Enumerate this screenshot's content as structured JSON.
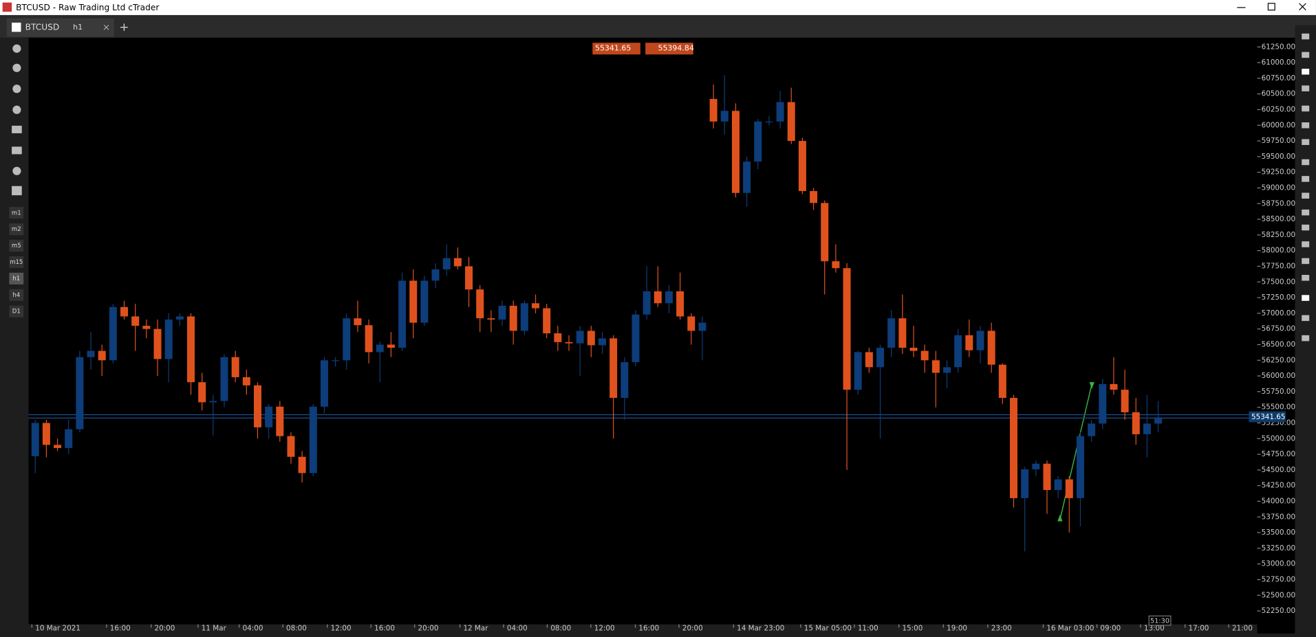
{
  "window": {
    "title": "BTCUSD - Raw Trading Ltd cTrader"
  },
  "tab": {
    "symbol": "BTCUSD",
    "timeframe": "h1"
  },
  "toolbar": {
    "timeframes": [
      "m1",
      "m2",
      "m5",
      "m15",
      "h1",
      "h4",
      "D1"
    ]
  },
  "quote": {
    "sell": 55341.65,
    "buy": 55394.84
  },
  "chart_data": {
    "type": "candlestick",
    "candles": [
      [
        54720,
        55300,
        54450,
        55250
      ],
      [
        55250,
        55300,
        54700,
        54900
      ],
      [
        54900,
        55000,
        54800,
        54850
      ],
      [
        54850,
        55300,
        54750,
        55150
      ],
      [
        55150,
        56400,
        55100,
        56300
      ],
      [
        56300,
        56700,
        56100,
        56400
      ],
      [
        56400,
        56500,
        56000,
        56250
      ],
      [
        56250,
        57150,
        56200,
        57100
      ],
      [
        57100,
        57200,
        56900,
        56950
      ],
      [
        56950,
        57150,
        56400,
        56800
      ],
      [
        56800,
        56900,
        56600,
        56750
      ],
      [
        56750,
        56900,
        56000,
        56270
      ],
      [
        56270,
        57000,
        55900,
        56900
      ],
      [
        56900,
        57000,
        56800,
        56950
      ],
      [
        56950,
        57000,
        55700,
        55900
      ],
      [
        55900,
        56050,
        55450,
        55580
      ],
      [
        55580,
        55700,
        55050,
        55600
      ],
      [
        55600,
        56350,
        55500,
        56300
      ],
      [
        56300,
        56400,
        55900,
        55980
      ],
      [
        55980,
        56100,
        55700,
        55850
      ],
      [
        55850,
        55900,
        55000,
        55180
      ],
      [
        55180,
        55550,
        55000,
        55510
      ],
      [
        55510,
        55600,
        54950,
        55040
      ],
      [
        55040,
        55100,
        54600,
        54710
      ],
      [
        54710,
        54800,
        54300,
        54450
      ],
      [
        54450,
        55550,
        54400,
        55510
      ],
      [
        55510,
        56300,
        55400,
        56250
      ],
      [
        56250,
        56300,
        56150,
        56250
      ],
      [
        56250,
        57000,
        56100,
        56920
      ],
      [
        56920,
        57200,
        56700,
        56810
      ],
      [
        56810,
        56900,
        56200,
        56380
      ],
      [
        56380,
        56550,
        55900,
        56500
      ],
      [
        56500,
        56700,
        56300,
        56450
      ],
      [
        56450,
        57650,
        56400,
        57520
      ],
      [
        57520,
        57700,
        56600,
        56850
      ],
      [
        56850,
        57600,
        56800,
        57520
      ],
      [
        57520,
        57800,
        57400,
        57700
      ],
      [
        57700,
        58100,
        57600,
        57880
      ],
      [
        57880,
        58050,
        57700,
        57750
      ],
      [
        57750,
        57900,
        57100,
        57380
      ],
      [
        57380,
        57450,
        56700,
        56920
      ],
      [
        56920,
        57050,
        56700,
        56900
      ],
      [
        56900,
        57200,
        56800,
        57120
      ],
      [
        57120,
        57200,
        56500,
        56720
      ],
      [
        56720,
        57200,
        56650,
        57160
      ],
      [
        57160,
        57300,
        57000,
        57080
      ],
      [
        57080,
        57150,
        56600,
        56680
      ],
      [
        56680,
        56800,
        56400,
        56540
      ],
      [
        56540,
        56650,
        56400,
        56520
      ],
      [
        56520,
        56800,
        56000,
        56720
      ],
      [
        56720,
        56800,
        56300,
        56490
      ],
      [
        56490,
        56700,
        56350,
        56600
      ],
      [
        56600,
        56650,
        55000,
        55650
      ],
      [
        55650,
        56300,
        55300,
        56220
      ],
      [
        56220,
        57050,
        56150,
        56980
      ],
      [
        56980,
        57750,
        56900,
        57350
      ],
      [
        57350,
        57750,
        57100,
        57160
      ],
      [
        57160,
        57450,
        57000,
        57350
      ],
      [
        57350,
        57650,
        56900,
        56950
      ],
      [
        56950,
        57000,
        56500,
        56720
      ],
      [
        56720,
        56950,
        56250,
        56850
      ],
      [
        60420,
        60650,
        59950,
        60060
      ],
      [
        60060,
        60800,
        59850,
        60230
      ],
      [
        60230,
        60350,
        58850,
        58920
      ],
      [
        58920,
        59500,
        58700,
        59420
      ],
      [
        59420,
        60100,
        59300,
        60060
      ],
      [
        60060,
        60150,
        60000,
        60060
      ],
      [
        60060,
        60550,
        59950,
        60370
      ],
      [
        60370,
        60600,
        59700,
        59750
      ],
      [
        59750,
        59800,
        58900,
        58950
      ],
      [
        58950,
        59000,
        58650,
        58760
      ],
      [
        58760,
        58800,
        57300,
        57830
      ],
      [
        57830,
        58100,
        57650,
        57720
      ],
      [
        57720,
        57800,
        54500,
        55780
      ],
      [
        55780,
        56400,
        55700,
        56380
      ],
      [
        56380,
        56450,
        56050,
        56140
      ],
      [
        56140,
        56500,
        55000,
        56450
      ],
      [
        56450,
        57050,
        56300,
        56920
      ],
      [
        56920,
        57300,
        56350,
        56450
      ],
      [
        56450,
        56800,
        56300,
        56400
      ],
      [
        56400,
        56500,
        56050,
        56250
      ],
      [
        56250,
        56400,
        55500,
        56050
      ],
      [
        56050,
        56250,
        55800,
        56140
      ],
      [
        56140,
        56750,
        56050,
        56650
      ],
      [
        56650,
        56900,
        56300,
        56410
      ],
      [
        56410,
        56800,
        56200,
        56720
      ],
      [
        56720,
        56850,
        56050,
        56180
      ],
      [
        56180,
        56200,
        55550,
        55650
      ],
      [
        55650,
        55700,
        53900,
        54050
      ],
      [
        54050,
        54550,
        53200,
        54510
      ],
      [
        54510,
        54650,
        54400,
        54600
      ],
      [
        54600,
        54650,
        53800,
        54180
      ],
      [
        54180,
        54400,
        54050,
        54350
      ],
      [
        54350,
        54400,
        53500,
        54050
      ],
      [
        54050,
        55100,
        53600,
        55040
      ],
      [
        55040,
        55300,
        54950,
        55240
      ],
      [
        55240,
        55950,
        55150,
        55870
      ],
      [
        55870,
        56300,
        55700,
        55780
      ],
      [
        55780,
        56100,
        55300,
        55420
      ],
      [
        55420,
        55650,
        54900,
        55070
      ],
      [
        55070,
        55700,
        54700,
        55240
      ],
      [
        55240,
        55600,
        55100,
        55340
      ]
    ],
    "up_color": "#0d3d7a",
    "down_color": "#e0521d",
    "ylim": [
      52250,
      61250
    ],
    "yticks": [
      {
        "value": 61250,
        "label": "61250.00"
      },
      {
        "value": 61000,
        "label": "61000.00"
      },
      {
        "value": 60750,
        "label": "60750.00"
      },
      {
        "value": 60500,
        "label": "60500.00"
      },
      {
        "value": 60250,
        "label": "60250.00"
      },
      {
        "value": 60000,
        "label": "60000.00"
      },
      {
        "value": 59750,
        "label": "59750.00"
      },
      {
        "value": 59500,
        "label": "59500.00"
      },
      {
        "value": 59250,
        "label": "59250.00"
      },
      {
        "value": 59000,
        "label": "59000.00"
      },
      {
        "value": 58750,
        "label": "58750.00"
      },
      {
        "value": 58500,
        "label": "58500.00"
      },
      {
        "value": 58250,
        "label": "58250.00"
      },
      {
        "value": 58000,
        "label": "58000.00"
      },
      {
        "value": 57750,
        "label": "57750.00"
      },
      {
        "value": 57500,
        "label": "57500.00"
      },
      {
        "value": 57250,
        "label": "57250.00"
      },
      {
        "value": 57000,
        "label": "57000.00"
      },
      {
        "value": 56750,
        "label": "56750.00"
      },
      {
        "value": 56500,
        "label": "56500.00"
      },
      {
        "value": 56250,
        "label": "56250.00"
      },
      {
        "value": 56000,
        "label": "56000.00"
      },
      {
        "value": 55750,
        "label": "55750.00"
      },
      {
        "value": 55500,
        "label": "55500.00"
      },
      {
        "value": 55250,
        "label": "55250.00"
      },
      {
        "value": 55000,
        "label": "55000.00"
      },
      {
        "value": 54750,
        "label": "54750.00"
      },
      {
        "value": 54500,
        "label": "54500.00"
      },
      {
        "value": 54250,
        "label": "54250.00"
      },
      {
        "value": 54000,
        "label": "54000.00"
      },
      {
        "value": 53750,
        "label": "53750.00"
      },
      {
        "value": 53500,
        "label": "53500.00"
      },
      {
        "value": 53250,
        "label": "53250.00"
      },
      {
        "value": 53000,
        "label": "53000.00"
      },
      {
        "value": 52750,
        "label": "52750.00"
      },
      {
        "value": 52500,
        "label": "52500.00"
      },
      {
        "value": 52250,
        "label": "52250.00"
      }
    ],
    "x_labels": [
      "10 Mar 2021",
      "16:00",
      "20:00",
      "11 Mar",
      "04:00",
      "08:00",
      "12:00",
      "16:00",
      "20:00",
      "12 Mar",
      "04:00",
      "08:00",
      "12:00",
      "16:00",
      "20:00",
      "14 Mar 23:00",
      "15 Mar 05:00",
      "11:00",
      "15:00",
      "19:00",
      "23:00",
      "16 Mar 03:00",
      "09:00",
      "13:00",
      "17:00",
      "21:00"
    ],
    "current_price": 55341.65,
    "bar_timer": "51:30"
  }
}
